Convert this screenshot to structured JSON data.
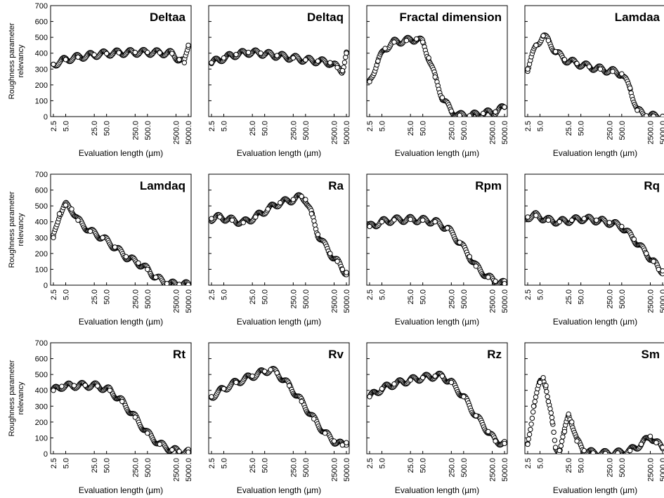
{
  "figure": {
    "ylabel_line1": "Roughness parameter",
    "ylabel_line2": "relevancy",
    "xlabel": "Evaluation length (µm)",
    "y_ticks": [
      "0",
      "100",
      "200",
      "300",
      "400",
      "500",
      "600",
      "700"
    ],
    "x_ticks": [
      "2.5",
      "5.0",
      "25.0",
      "50.0",
      "250.0",
      "500.0",
      "2500.0",
      "5000.0"
    ],
    "marker_color": "#000000",
    "marker_fill": "#ffffff"
  },
  "chart_data": [
    {
      "type": "scatter",
      "title": "Deltaa",
      "x_scale": "log",
      "xlim": [
        2.5,
        5000
      ],
      "ylim": [
        0,
        700
      ],
      "x": [
        2.5,
        5,
        10,
        25,
        50,
        100,
        250,
        500,
        1000,
        2000,
        3000,
        4000,
        5000
      ],
      "y": [
        330,
        360,
        375,
        390,
        398,
        403,
        405,
        405,
        403,
        398,
        360,
        340,
        450
      ]
    },
    {
      "type": "scatter",
      "title": "Deltaq",
      "x_scale": "log",
      "xlim": [
        2.5,
        5000
      ],
      "ylim": [
        0,
        700
      ],
      "x": [
        2.5,
        5,
        10,
        20,
        40,
        100,
        250,
        500,
        1000,
        2000,
        3000,
        4000,
        5000
      ],
      "y": [
        340,
        370,
        392,
        405,
        400,
        385,
        370,
        358,
        350,
        340,
        310,
        290,
        400
      ]
    },
    {
      "type": "scatter",
      "title": "Fractal dimension",
      "x_scale": "log",
      "xlim": [
        2.5,
        5000
      ],
      "ylim": [
        0,
        700
      ],
      "x": [
        2.5,
        4,
        6,
        10,
        20,
        35,
        50,
        70,
        100,
        150,
        250,
        400,
        700,
        1500,
        3000,
        5000
      ],
      "y": [
        220,
        350,
        430,
        470,
        480,
        490,
        470,
        370,
        250,
        120,
        35,
        8,
        5,
        20,
        30,
        60
      ]
    },
    {
      "type": "scatter",
      "title": "Lamdaa",
      "x_scale": "log",
      "xlim": [
        2.5,
        5000
      ],
      "ylim": [
        0,
        700
      ],
      "x": [
        2.5,
        4,
        6,
        8,
        12,
        20,
        40,
        80,
        150,
        300,
        500,
        800,
        1200,
        2000,
        3000,
        5000
      ],
      "y": [
        300,
        450,
        510,
        480,
        410,
        360,
        335,
        315,
        300,
        285,
        270,
        180,
        40,
        5,
        3,
        2
      ]
    },
    {
      "type": "scatter",
      "title": "Lamdaq",
      "x_scale": "log",
      "xlim": [
        2.5,
        5000
      ],
      "ylim": [
        0,
        700
      ],
      "x": [
        2.5,
        3.5,
        5,
        7,
        10,
        20,
        40,
        80,
        150,
        300,
        500,
        800,
        1500,
        3000,
        5000
      ],
      "y": [
        300,
        450,
        505,
        480,
        410,
        340,
        300,
        240,
        180,
        140,
        100,
        50,
        10,
        5,
        3
      ]
    },
    {
      "type": "scatter",
      "title": "Ra",
      "x_scale": "log",
      "xlim": [
        2.5,
        5000
      ],
      "ylim": [
        0,
        700
      ],
      "x": [
        2.5,
        4,
        8,
        15,
        30,
        60,
        120,
        250,
        400,
        500,
        700,
        1000,
        2000,
        3000,
        4000,
        5000
      ],
      "y": [
        420,
        430,
        410,
        395,
        430,
        480,
        520,
        540,
        560,
        540,
        450,
        320,
        200,
        150,
        100,
        80
      ]
    },
    {
      "type": "scatter",
      "title": "Rpm",
      "x_scale": "log",
      "xlim": [
        2.5,
        5000
      ],
      "ylim": [
        0,
        700
      ],
      "x": [
        2.5,
        5,
        10,
        25,
        50,
        100,
        200,
        400,
        700,
        1000,
        2000,
        3000,
        5000
      ],
      "y": [
        370,
        400,
        412,
        415,
        410,
        400,
        360,
        270,
        180,
        120,
        50,
        25,
        10
      ]
    },
    {
      "type": "scatter",
      "title": "Rq",
      "x_scale": "log",
      "xlim": [
        2.5,
        5000
      ],
      "ylim": [
        0,
        700
      ],
      "x": [
        2.5,
        4,
        8,
        15,
        30,
        60,
        120,
        250,
        500,
        1000,
        2000,
        3000,
        4000,
        5000
      ],
      "y": [
        430,
        440,
        410,
        400,
        410,
        420,
        410,
        395,
        370,
        290,
        200,
        150,
        100,
        90
      ]
    },
    {
      "type": "scatter",
      "title": "Rt",
      "x_scale": "log",
      "xlim": [
        2.5,
        5000
      ],
      "ylim": [
        0,
        700
      ],
      "x": [
        2.5,
        4,
        8,
        15,
        30,
        60,
        120,
        250,
        500,
        1000,
        2000,
        3000,
        5000
      ],
      "y": [
        400,
        425,
        430,
        432,
        428,
        400,
        330,
        230,
        130,
        60,
        25,
        15,
        10
      ]
    },
    {
      "type": "scatter",
      "title": "Rv",
      "x_scale": "log",
      "xlim": [
        2.5,
        5000
      ],
      "ylim": [
        0,
        700
      ],
      "x": [
        2.5,
        5,
        10,
        25,
        50,
        70,
        100,
        200,
        400,
        800,
        1500,
        2500,
        4000,
        5000
      ],
      "y": [
        360,
        410,
        450,
        490,
        520,
        530,
        510,
        430,
        330,
        220,
        130,
        80,
        55,
        70
      ]
    },
    {
      "type": "scatter",
      "title": "Rz",
      "x_scale": "log",
      "xlim": [
        2.5,
        5000
      ],
      "ylim": [
        0,
        700
      ],
      "x": [
        2.5,
        5,
        10,
        25,
        50,
        100,
        150,
        250,
        500,
        1000,
        2000,
        3000,
        5000
      ],
      "y": [
        360,
        410,
        440,
        465,
        480,
        490,
        490,
        450,
        360,
        240,
        140,
        80,
        65
      ]
    },
    {
      "type": "scatter",
      "title": "Sm",
      "x_scale": "log",
      "xlim": [
        2.5,
        5000
      ],
      "ylim": [
        0,
        700
      ],
      "x": [
        2.5,
        3.5,
        5,
        6,
        7,
        8,
        10,
        12,
        15,
        20,
        25,
        30,
        40,
        60,
        100,
        200,
        400,
        800,
        1500,
        2500,
        3500,
        5000
      ],
      "y": [
        60,
        300,
        450,
        480,
        430,
        330,
        200,
        40,
        20,
        140,
        250,
        200,
        80,
        20,
        5,
        2,
        5,
        20,
        60,
        110,
        70,
        40
      ]
    }
  ]
}
